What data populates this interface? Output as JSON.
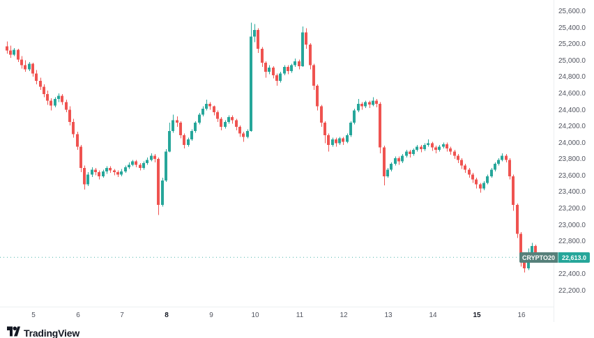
{
  "chart": {
    "symbol": "CRYPTO20",
    "last_price_text": "22,613.0",
    "colors": {
      "up": "#26a69a",
      "down": "#ef5350",
      "badge_symbol_bg": "#56807a",
      "badge_price_bg": "#26a69a",
      "last_price_line": "#26a69a",
      "axis_text": "#50535e",
      "axis_line": "#eceff1",
      "logo": "#131722"
    }
  },
  "branding": {
    "logo_text": "TradingView"
  },
  "chart_data": {
    "type": "candlestick",
    "symbol": "CRYPTO20",
    "last_price": 22613.0,
    "ylim": [
      22200,
      25600
    ],
    "y_ticks": [
      25600,
      25400,
      25200,
      25000,
      24800,
      24600,
      24400,
      24200,
      24000,
      23800,
      23600,
      23400,
      23200,
      23000,
      22800,
      22600,
      22400,
      22200
    ],
    "x_labels": [
      {
        "label": "5",
        "day": 5,
        "bold": false
      },
      {
        "label": "6",
        "day": 6,
        "bold": false
      },
      {
        "label": "7",
        "day": 7,
        "bold": false
      },
      {
        "label": "8",
        "day": 8,
        "bold": true
      },
      {
        "label": "9",
        "day": 9,
        "bold": false
      },
      {
        "label": "10",
        "day": 10,
        "bold": false
      },
      {
        "label": "11",
        "day": 11,
        "bold": false
      },
      {
        "label": "12",
        "day": 12,
        "bold": false
      },
      {
        "label": "13",
        "day": 13,
        "bold": false
      },
      {
        "label": "14",
        "day": 14,
        "bold": false
      },
      {
        "label": "15",
        "day": 15,
        "bold": true
      },
      {
        "label": "16",
        "day": 16,
        "bold": false
      }
    ],
    "candles_per_day": 12,
    "first_candle_day": 4.4,
    "grid": false,
    "legend": "none",
    "candles_ohlc": [
      [
        25180,
        25240,
        25090,
        25130
      ],
      [
        25130,
        25190,
        25040,
        25080
      ],
      [
        25080,
        25160,
        25060,
        25140
      ],
      [
        25140,
        25150,
        24990,
        25020
      ],
      [
        25020,
        25060,
        24910,
        24950
      ],
      [
        24950,
        25010,
        24870,
        24900
      ],
      [
        24900,
        24990,
        24880,
        24970
      ],
      [
        24970,
        24980,
        24810,
        24850
      ],
      [
        24850,
        24890,
        24720,
        24760
      ],
      [
        24760,
        24800,
        24650,
        24690
      ],
      [
        24690,
        24720,
        24560,
        24600
      ],
      [
        24600,
        24640,
        24470,
        24520
      ],
      [
        24520,
        24550,
        24400,
        24460
      ],
      [
        24460,
        24560,
        24440,
        24540
      ],
      [
        24540,
        24610,
        24500,
        24580
      ],
      [
        24580,
        24600,
        24470,
        24500
      ],
      [
        24500,
        24530,
        24380,
        24410
      ],
      [
        24410,
        24450,
        24220,
        24260
      ],
      [
        24260,
        24300,
        24070,
        24110
      ],
      [
        24110,
        24140,
        23920,
        23960
      ],
      [
        23960,
        23980,
        23650,
        23700
      ],
      [
        23700,
        23730,
        23440,
        23500
      ],
      [
        23500,
        23650,
        23480,
        23620
      ],
      [
        23620,
        23710,
        23590,
        23680
      ],
      [
        23680,
        23700,
        23610,
        23650
      ],
      [
        23650,
        23670,
        23560,
        23600
      ],
      [
        23600,
        23680,
        23580,
        23660
      ],
      [
        23660,
        23720,
        23630,
        23700
      ],
      [
        23700,
        23720,
        23640,
        23670
      ],
      [
        23670,
        23690,
        23610,
        23650
      ],
      [
        23650,
        23670,
        23590,
        23620
      ],
      [
        23620,
        23690,
        23600,
        23660
      ],
      [
        23660,
        23730,
        23640,
        23710
      ],
      [
        23710,
        23770,
        23690,
        23740
      ],
      [
        23740,
        23800,
        23720,
        23780
      ],
      [
        23780,
        23800,
        23710,
        23740
      ],
      [
        23740,
        23760,
        23670,
        23700
      ],
      [
        23700,
        23780,
        23680,
        23760
      ],
      [
        23760,
        23830,
        23740,
        23800
      ],
      [
        23800,
        23880,
        23780,
        23850
      ],
      [
        23850,
        23870,
        23770,
        23810
      ],
      [
        23810,
        23830,
        23130,
        23250
      ],
      [
        23250,
        23580,
        23230,
        23550
      ],
      [
        23550,
        23930,
        23530,
        23900
      ],
      [
        23900,
        24250,
        23890,
        24150
      ],
      [
        24150,
        24350,
        24130,
        24280
      ],
      [
        24280,
        24330,
        24200,
        24250
      ],
      [
        24250,
        24270,
        24060,
        24100
      ],
      [
        24100,
        24120,
        23940,
        23980
      ],
      [
        23980,
        24070,
        23960,
        24050
      ],
      [
        24050,
        24170,
        24030,
        24150
      ],
      [
        24150,
        24270,
        24130,
        24250
      ],
      [
        24250,
        24370,
        24230,
        24350
      ],
      [
        24350,
        24450,
        24330,
        24420
      ],
      [
        24420,
        24530,
        24400,
        24480
      ],
      [
        24480,
        24500,
        24410,
        24450
      ],
      [
        24450,
        24460,
        24340,
        24380
      ],
      [
        24380,
        24400,
        24260,
        24300
      ],
      [
        24300,
        24320,
        24160,
        24200
      ],
      [
        24200,
        24280,
        24180,
        24260
      ],
      [
        24260,
        24340,
        24240,
        24320
      ],
      [
        24320,
        24340,
        24240,
        24280
      ],
      [
        24280,
        24300,
        24160,
        24200
      ],
      [
        24200,
        24220,
        24080,
        24120
      ],
      [
        24120,
        24140,
        24020,
        24080
      ],
      [
        24080,
        24170,
        24060,
        24150
      ],
      [
        24150,
        25470,
        24140,
        25300
      ],
      [
        25300,
        25450,
        25230,
        25380
      ],
      [
        25380,
        25400,
        25100,
        25150
      ],
      [
        25150,
        25170,
        24930,
        24980
      ],
      [
        24980,
        25000,
        24800,
        24870
      ],
      [
        24870,
        24950,
        24840,
        24920
      ],
      [
        24920,
        24940,
        24790,
        24830
      ],
      [
        24830,
        24850,
        24700,
        24760
      ],
      [
        24760,
        24870,
        24740,
        24850
      ],
      [
        24850,
        24950,
        24830,
        24930
      ],
      [
        24930,
        24950,
        24840,
        24880
      ],
      [
        24880,
        24970,
        24860,
        24950
      ],
      [
        24950,
        25030,
        24930,
        25000
      ],
      [
        25000,
        25020,
        24900,
        24940
      ],
      [
        24940,
        25420,
        24930,
        25350
      ],
      [
        25350,
        25400,
        25150,
        25200
      ],
      [
        25200,
        25220,
        24900,
        24950
      ],
      [
        24950,
        24970,
        24650,
        24700
      ],
      [
        24700,
        24720,
        24400,
        24450
      ],
      [
        24450,
        24470,
        24200,
        24250
      ],
      [
        24250,
        24270,
        24000,
        24100
      ],
      [
        24100,
        24120,
        23900,
        23980
      ],
      [
        23980,
        24070,
        23960,
        24050
      ],
      [
        24050,
        24070,
        23960,
        24000
      ],
      [
        24000,
        24080,
        23980,
        24060
      ],
      [
        24060,
        24080,
        23980,
        24020
      ],
      [
        24020,
        24120,
        24000,
        24100
      ],
      [
        24100,
        24270,
        24080,
        24250
      ],
      [
        24250,
        24420,
        24230,
        24400
      ],
      [
        24400,
        24540,
        24380,
        24480
      ],
      [
        24480,
        24500,
        24410,
        24450
      ],
      [
        24450,
        24520,
        24430,
        24500
      ],
      [
        24500,
        24520,
        24430,
        24470
      ],
      [
        24470,
        24560,
        24450,
        24520
      ],
      [
        24520,
        24540,
        24440,
        24480
      ],
      [
        24480,
        24500,
        23880,
        23950
      ],
      [
        23950,
        23970,
        23490,
        23600
      ],
      [
        23600,
        23700,
        23580,
        23680
      ],
      [
        23680,
        23770,
        23660,
        23750
      ],
      [
        23750,
        23840,
        23730,
        23820
      ],
      [
        23820,
        23840,
        23740,
        23780
      ],
      [
        23780,
        23870,
        23760,
        23850
      ],
      [
        23850,
        23920,
        23830,
        23900
      ],
      [
        23900,
        23920,
        23830,
        23870
      ],
      [
        23870,
        23940,
        23850,
        23920
      ],
      [
        23920,
        23980,
        23900,
        23960
      ],
      [
        23960,
        23980,
        23890,
        23930
      ],
      [
        23930,
        24000,
        23910,
        23980
      ],
      [
        23980,
        24050,
        23960,
        24000
      ],
      [
        24000,
        24020,
        23910,
        23950
      ],
      [
        23950,
        23970,
        23880,
        23920
      ],
      [
        23920,
        23980,
        23900,
        23960
      ],
      [
        23960,
        24010,
        23940,
        23990
      ],
      [
        23990,
        24010,
        23900,
        23940
      ],
      [
        23940,
        23960,
        23860,
        23900
      ],
      [
        23900,
        23920,
        23810,
        23850
      ],
      [
        23850,
        23870,
        23760,
        23800
      ],
      [
        23800,
        23820,
        23690,
        23730
      ],
      [
        23730,
        23750,
        23640,
        23680
      ],
      [
        23680,
        23700,
        23580,
        23620
      ],
      [
        23620,
        23640,
        23520,
        23560
      ],
      [
        23560,
        23580,
        23450,
        23500
      ],
      [
        23500,
        23520,
        23400,
        23450
      ],
      [
        23450,
        23540,
        23430,
        23520
      ],
      [
        23520,
        23620,
        23500,
        23600
      ],
      [
        23600,
        23700,
        23580,
        23680
      ],
      [
        23680,
        23770,
        23660,
        23750
      ],
      [
        23750,
        23820,
        23730,
        23800
      ],
      [
        23800,
        23880,
        23780,
        23850
      ],
      [
        23850,
        23870,
        23770,
        23800
      ],
      [
        23800,
        23820,
        23560,
        23600
      ],
      [
        23600,
        23620,
        23180,
        23250
      ],
      [
        23250,
        23270,
        22850,
        22900
      ],
      [
        22900,
        22920,
        22500,
        22600
      ],
      [
        22600,
        22620,
        22430,
        22480
      ],
      [
        22480,
        22720,
        22460,
        22650
      ],
      [
        22650,
        22790,
        22630,
        22750
      ],
      [
        22750,
        22770,
        22580,
        22613
      ]
    ]
  }
}
